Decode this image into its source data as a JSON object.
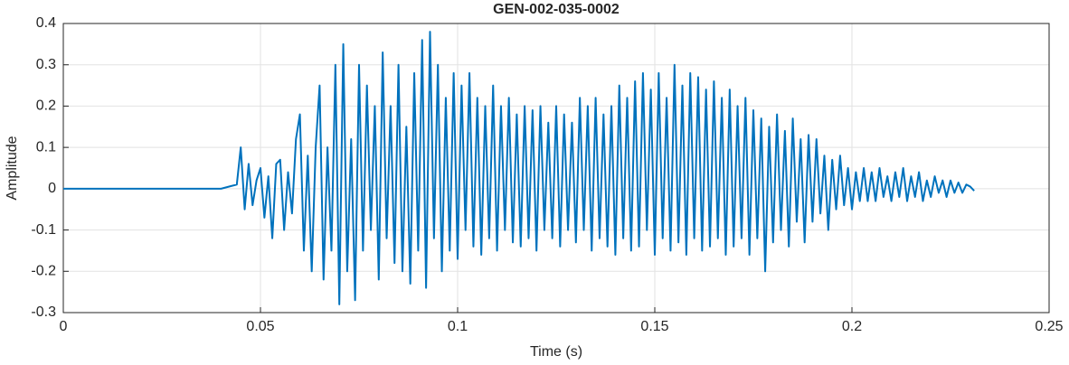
{
  "chart_data": {
    "type": "line",
    "title": "GEN-002-035-0002",
    "x_label": "Time (s)",
    "y_label": "Amplitude",
    "color": "#0072bd",
    "grid": true,
    "xlim": [
      0,
      0.25
    ],
    "ylim": [
      -0.3,
      0.4
    ],
    "xticks": [
      0,
      0.05,
      0.1,
      0.15,
      0.2,
      0.25
    ],
    "yticks": [
      -0.3,
      -0.2,
      -0.1,
      0,
      0.1,
      0.2,
      0.3,
      0.4
    ],
    "x": [
      0,
      0.01,
      0.02,
      0.03,
      0.04,
      0.044,
      0.045,
      0.046,
      0.047,
      0.048,
      0.049,
      0.05,
      0.051,
      0.052,
      0.053,
      0.054,
      0.055,
      0.056,
      0.057,
      0.058,
      0.059,
      0.06,
      0.061,
      0.062,
      0.063,
      0.064,
      0.065,
      0.066,
      0.067,
      0.068,
      0.069,
      0.07,
      0.071,
      0.072,
      0.073,
      0.074,
      0.075,
      0.076,
      0.077,
      0.078,
      0.079,
      0.08,
      0.081,
      0.082,
      0.083,
      0.084,
      0.085,
      0.086,
      0.087,
      0.088,
      0.089,
      0.09,
      0.091,
      0.092,
      0.093,
      0.094,
      0.095,
      0.096,
      0.097,
      0.098,
      0.099,
      0.1,
      0.101,
      0.102,
      0.103,
      0.104,
      0.105,
      0.106,
      0.107,
      0.108,
      0.109,
      0.11,
      0.111,
      0.112,
      0.113,
      0.114,
      0.115,
      0.116,
      0.117,
      0.118,
      0.119,
      0.12,
      0.121,
      0.122,
      0.123,
      0.124,
      0.125,
      0.126,
      0.127,
      0.128,
      0.129,
      0.13,
      0.131,
      0.132,
      0.133,
      0.134,
      0.135,
      0.136,
      0.137,
      0.138,
      0.139,
      0.14,
      0.141,
      0.142,
      0.143,
      0.144,
      0.145,
      0.146,
      0.147,
      0.148,
      0.149,
      0.15,
      0.151,
      0.152,
      0.153,
      0.154,
      0.155,
      0.156,
      0.157,
      0.158,
      0.159,
      0.16,
      0.161,
      0.162,
      0.163,
      0.164,
      0.165,
      0.166,
      0.167,
      0.168,
      0.169,
      0.17,
      0.171,
      0.172,
      0.173,
      0.174,
      0.175,
      0.176,
      0.177,
      0.178,
      0.179,
      0.18,
      0.181,
      0.182,
      0.183,
      0.184,
      0.185,
      0.186,
      0.187,
      0.188,
      0.189,
      0.19,
      0.191,
      0.192,
      0.193,
      0.194,
      0.195,
      0.196,
      0.197,
      0.198,
      0.199,
      0.2,
      0.201,
      0.202,
      0.203,
      0.204,
      0.205,
      0.206,
      0.207,
      0.208,
      0.209,
      0.21,
      0.211,
      0.212,
      0.213,
      0.214,
      0.215,
      0.216,
      0.217,
      0.218,
      0.219,
      0.22,
      0.221,
      0.222,
      0.223,
      0.224,
      0.225,
      0.226,
      0.227,
      0.228,
      0.229,
      0.23,
      0.231
    ],
    "values": [
      0,
      0,
      0,
      0,
      0,
      0.01,
      0.1,
      -0.05,
      0.06,
      -0.04,
      0.02,
      0.05,
      -0.07,
      0.03,
      -0.12,
      0.06,
      0.07,
      -0.1,
      0.04,
      -0.06,
      0.12,
      0.18,
      -0.15,
      0.08,
      -0.2,
      0.1,
      0.25,
      -0.22,
      0.1,
      -0.15,
      0.3,
      -0.28,
      0.35,
      -0.2,
      0.12,
      -0.27,
      0.3,
      -0.15,
      0.25,
      -0.1,
      0.2,
      -0.22,
      0.33,
      -0.12,
      0.2,
      -0.18,
      0.3,
      -0.2,
      0.15,
      -0.23,
      0.28,
      -0.15,
      0.36,
      -0.24,
      0.38,
      -0.12,
      0.3,
      -0.2,
      0.22,
      -0.15,
      0.28,
      -0.17,
      0.25,
      -0.1,
      0.28,
      -0.14,
      0.22,
      -0.16,
      0.2,
      -0.12,
      0.25,
      -0.15,
      0.2,
      -0.1,
      0.22,
      -0.13,
      0.18,
      -0.14,
      0.2,
      -0.12,
      0.19,
      -0.15,
      0.2,
      -0.1,
      0.16,
      -0.12,
      0.2,
      -0.14,
      0.18,
      -0.1,
      0.16,
      -0.13,
      0.22,
      -0.1,
      0.2,
      -0.15,
      0.22,
      -0.12,
      0.18,
      -0.14,
      0.2,
      -0.16,
      0.25,
      -0.12,
      0.22,
      -0.15,
      0.26,
      -0.14,
      0.28,
      -0.1,
      0.24,
      -0.16,
      0.28,
      -0.12,
      0.22,
      -0.15,
      0.3,
      -0.13,
      0.25,
      -0.16,
      0.28,
      -0.12,
      0.27,
      -0.15,
      0.24,
      -0.14,
      0.26,
      -0.12,
      0.22,
      -0.16,
      0.24,
      -0.14,
      0.2,
      -0.12,
      0.22,
      -0.16,
      0.19,
      -0.12,
      0.17,
      -0.2,
      0.15,
      -0.13,
      0.18,
      -0.1,
      0.14,
      -0.14,
      0.17,
      -0.08,
      0.12,
      -0.13,
      0.13,
      -0.08,
      0.12,
      -0.06,
      0.08,
      -0.1,
      0.07,
      -0.05,
      0.08,
      -0.04,
      0.05,
      -0.05,
      0.04,
      -0.03,
      0.05,
      -0.03,
      0.04,
      -0.03,
      0.05,
      -0.02,
      0.03,
      -0.03,
      0.04,
      -0.02,
      0.05,
      -0.03,
      0.03,
      -0.02,
      0.04,
      -0.03,
      0.02,
      -0.02,
      0.03,
      -0.01,
      0.02,
      -0.02,
      0.02,
      -0.01,
      0.015,
      -0.01,
      0.01,
      0.005,
      -0.005
    ]
  }
}
